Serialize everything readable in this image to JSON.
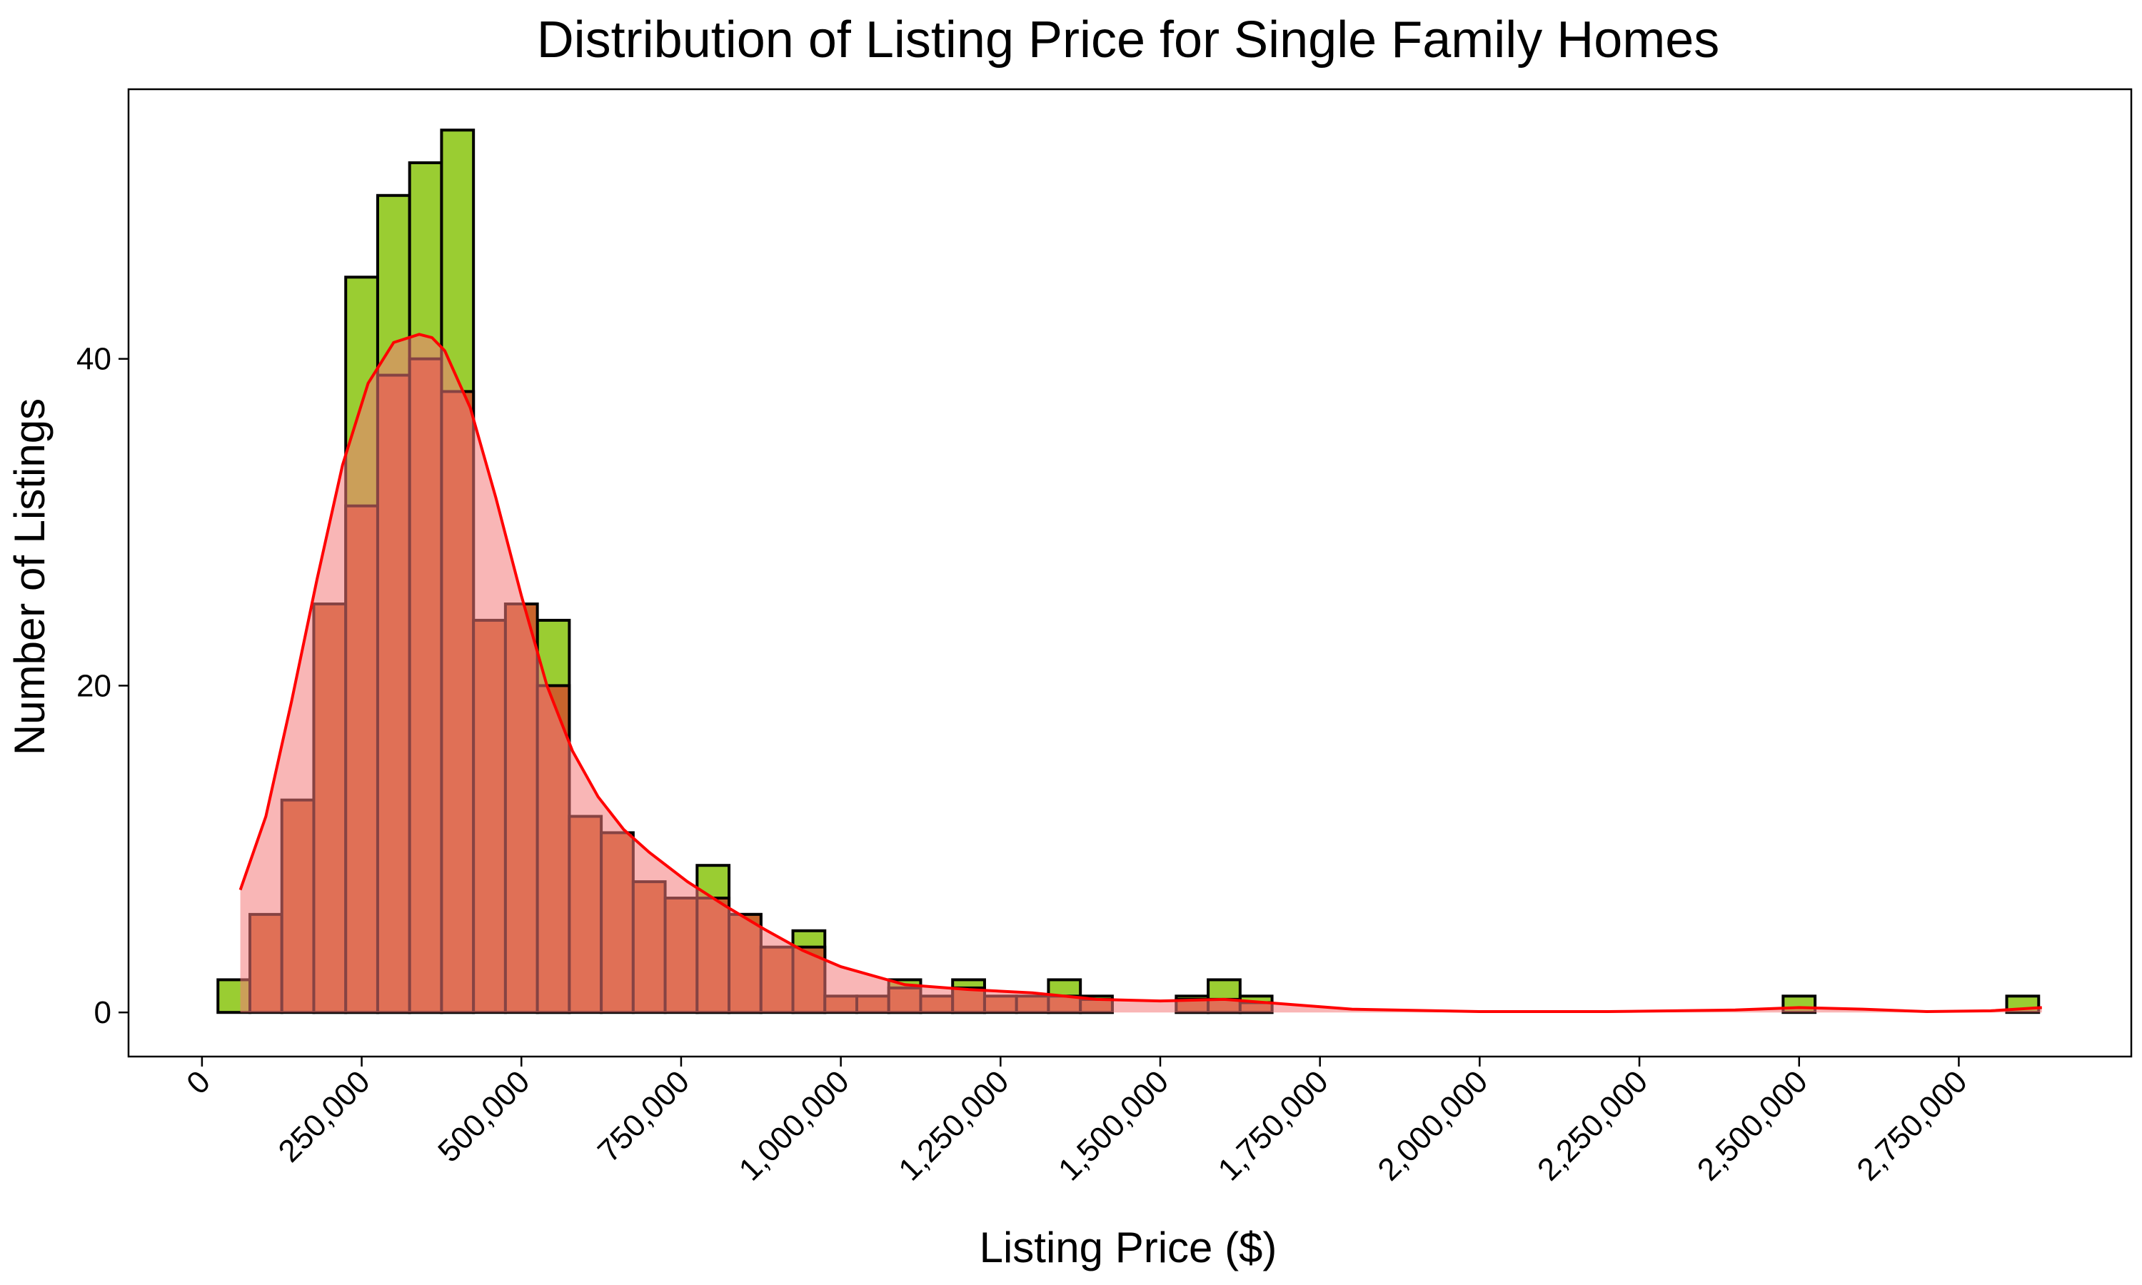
{
  "chart_data": {
    "type": "bar",
    "title": "Distribution of Listing Price for Single Family Homes",
    "xlabel": "Listing Price ($)",
    "ylabel": "Number of Listings",
    "xlim": [
      -115000,
      3020000
    ],
    "ylim": [
      -2.7,
      56.5
    ],
    "x_ticks": [
      0,
      250000,
      500000,
      750000,
      1000000,
      1250000,
      1500000,
      1750000,
      2000000,
      2250000,
      2500000,
      2750000
    ],
    "x_tick_labels": [
      "0",
      "250,000",
      "500,000",
      "750,000",
      "1,000,000",
      "1,250,000",
      "1,500,000",
      "1,750,000",
      "2,000,000",
      "2,250,000",
      "2,500,000",
      "2,750,000"
    ],
    "y_ticks": [
      0,
      20,
      40
    ],
    "y_tick_labels": [
      "0",
      "20",
      "40"
    ],
    "grid": false,
    "series": [
      {
        "color": "#9ACD32",
        "bins": [
          {
            "x0": 25000,
            "x1": 75000,
            "count": 2
          },
          {
            "x0": 175000,
            "x1": 225000,
            "count": 25
          },
          {
            "x0": 225000,
            "x1": 275000,
            "count": 45
          },
          {
            "x0": 275000,
            "x1": 325000,
            "count": 50
          },
          {
            "x0": 325000,
            "x1": 375000,
            "count": 52
          },
          {
            "x0": 375000,
            "x1": 425000,
            "count": 54
          },
          {
            "x0": 525000,
            "x1": 575000,
            "count": 24
          },
          {
            "x0": 775000,
            "x1": 825000,
            "count": 9
          },
          {
            "x0": 825000,
            "x1": 875000,
            "count": 6
          },
          {
            "x0": 925000,
            "x1": 975000,
            "count": 5
          },
          {
            "x0": 1075000,
            "x1": 1125000,
            "count": 2
          },
          {
            "x0": 1175000,
            "x1": 1225000,
            "count": 2
          },
          {
            "x0": 1325000,
            "x1": 1375000,
            "count": 2
          },
          {
            "x0": 1375000,
            "x1": 1425000,
            "count": 1
          },
          {
            "x0": 1525000,
            "x1": 1575000,
            "count": 1
          },
          {
            "x0": 1575000,
            "x1": 1625000,
            "count": 2
          },
          {
            "x0": 1625000,
            "x1": 1675000,
            "count": 1
          },
          {
            "x0": 2475000,
            "x1": 2525000,
            "count": 1
          },
          {
            "x0": 2825000,
            "x1": 2875000,
            "count": 1
          }
        ]
      },
      {
        "color": "#C8642C",
        "bins": [
          {
            "x0": 75000,
            "x1": 125000,
            "count": 6
          },
          {
            "x0": 125000,
            "x1": 175000,
            "count": 13
          },
          {
            "x0": 175000,
            "x1": 225000,
            "count": 25
          },
          {
            "x0": 225000,
            "x1": 275000,
            "count": 31
          },
          {
            "x0": 275000,
            "x1": 325000,
            "count": 39
          },
          {
            "x0": 325000,
            "x1": 375000,
            "count": 40
          },
          {
            "x0": 375000,
            "x1": 425000,
            "count": 38
          },
          {
            "x0": 425000,
            "x1": 475000,
            "count": 24
          },
          {
            "x0": 475000,
            "x1": 525000,
            "count": 25
          },
          {
            "x0": 525000,
            "x1": 575000,
            "count": 20
          },
          {
            "x0": 575000,
            "x1": 625000,
            "count": 12
          },
          {
            "x0": 625000,
            "x1": 675000,
            "count": 11
          },
          {
            "x0": 675000,
            "x1": 725000,
            "count": 8
          },
          {
            "x0": 725000,
            "x1": 775000,
            "count": 7
          },
          {
            "x0": 775000,
            "x1": 825000,
            "count": 7
          },
          {
            "x0": 825000,
            "x1": 875000,
            "count": 6
          },
          {
            "x0": 875000,
            "x1": 925000,
            "count": 4
          },
          {
            "x0": 925000,
            "x1": 975000,
            "count": 4
          },
          {
            "x0": 975000,
            "x1": 1025000,
            "count": 1
          },
          {
            "x0": 1025000,
            "x1": 1075000,
            "count": 1
          },
          {
            "x0": 1075000,
            "x1": 1125000,
            "count": 1.5
          },
          {
            "x0": 1125000,
            "x1": 1175000,
            "count": 1
          },
          {
            "x0": 1175000,
            "x1": 1225000,
            "count": 1.5
          },
          {
            "x0": 1225000,
            "x1": 1275000,
            "count": 1
          },
          {
            "x0": 1275000,
            "x1": 1325000,
            "count": 1
          },
          {
            "x0": 1325000,
            "x1": 1375000,
            "count": 1
          },
          {
            "x0": 1375000,
            "x1": 1425000,
            "count": 0.8
          },
          {
            "x0": 1525000,
            "x1": 1575000,
            "count": 0.8
          },
          {
            "x0": 1575000,
            "x1": 1625000,
            "count": 0.8
          },
          {
            "x0": 1625000,
            "x1": 1675000,
            "count": 0.6
          }
        ]
      },
      {
        "type": "area",
        "color": "#FF0000",
        "fill": "#F47A7A",
        "x": [
          60000,
          100000,
          140000,
          180000,
          220000,
          260000,
          300000,
          340000,
          360000,
          380000,
          420000,
          460000,
          500000,
          540000,
          580000,
          620000,
          660000,
          700000,
          760000,
          820000,
          880000,
          940000,
          1000000,
          1100000,
          1200000,
          1300000,
          1400000,
          1500000,
          1600000,
          1700000,
          1800000,
          2000000,
          2200000,
          2400000,
          2500000,
          2600000,
          2700000,
          2800000,
          2880000
        ],
        "y": [
          7.5,
          12,
          19,
          26.5,
          33.5,
          38.5,
          41,
          41.5,
          41.3,
          40.5,
          37,
          31.5,
          25.5,
          20,
          16,
          13.2,
          11.2,
          9.8,
          8,
          6.5,
          5.1,
          3.8,
          2.8,
          1.7,
          1.4,
          1.2,
          0.8,
          0.7,
          0.8,
          0.5,
          0.2,
          0.05,
          0.05,
          0.15,
          0.3,
          0.2,
          0.05,
          0.1,
          0.3
        ]
      }
    ]
  }
}
